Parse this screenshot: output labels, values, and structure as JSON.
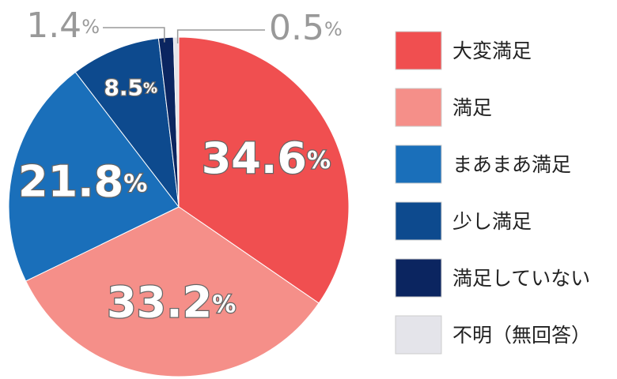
{
  "chart_data": {
    "type": "pie",
    "categories": [
      "大変満足",
      "満足",
      "まあまあ満足",
      "少し満足",
      "満足していない",
      "不明（無回答）"
    ],
    "values": [
      34.6,
      33.2,
      21.8,
      8.5,
      1.4,
      0.5
    ],
    "value_labels": [
      "34.6%",
      "33.2%",
      "21.8%",
      "8.5%",
      "1.4%",
      "0.5%"
    ],
    "colors": [
      "#f04f50",
      "#f58f89",
      "#1a6fba",
      "#0d4a8e",
      "#0b2560",
      "#e4e4ea"
    ],
    "legend": "right"
  }
}
